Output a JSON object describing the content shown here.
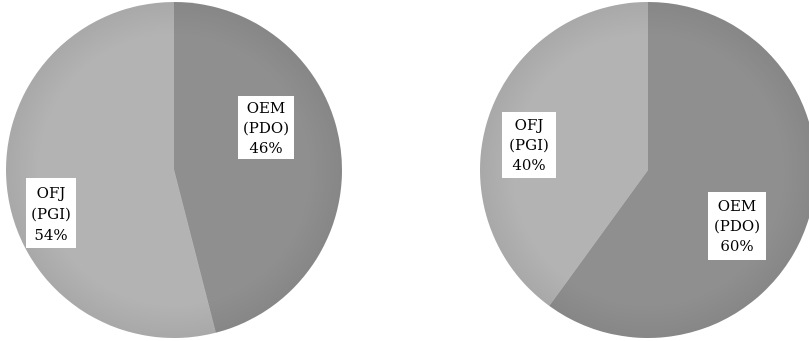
{
  "chart_data": [
    {
      "type": "pie",
      "title": "",
      "slices": [
        {
          "line1": "OEM",
          "line2": "(PDO)",
          "pct": "46%",
          "value": 46,
          "color": "#8f8f8f"
        },
        {
          "line1": "OFJ",
          "line2": "(PGI)",
          "pct": "54%",
          "value": 54,
          "color": "#b3b3b3"
        }
      ]
    },
    {
      "type": "pie",
      "title": "",
      "slices": [
        {
          "line1": "OEM",
          "line2": "(PDO)",
          "pct": "60%",
          "value": 60,
          "color": "#8f8f8f"
        },
        {
          "line1": "OFJ",
          "line2": "(PGI)",
          "pct": "40%",
          "value": 40,
          "color": "#b3b3b3"
        }
      ]
    }
  ]
}
